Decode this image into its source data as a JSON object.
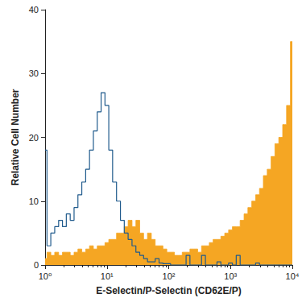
{
  "chart_data": {
    "type": "line",
    "x_label": "E-Selectin/P-Selectin (CD62E/P)",
    "y_label": "Relative Cell Number",
    "log": "x",
    "grid": false,
    "xlim": [
      1,
      10000
    ],
    "xticks": [
      {
        "value": 1,
        "label": "10⁰"
      },
      {
        "value": 10,
        "label": "10¹"
      },
      {
        "value": 100,
        "label": "10²"
      },
      {
        "value": 1000,
        "label": "10³"
      },
      {
        "value": 10000,
        "label": "10⁴"
      }
    ],
    "ylim": [
      0,
      40
    ],
    "yticks": [
      0,
      10,
      20,
      30,
      40
    ],
    "x": [
      1,
      1.15,
      1.33,
      1.54,
      1.78,
      2.05,
      2.37,
      2.74,
      3.16,
      3.65,
      4.22,
      4.87,
      5.62,
      6.49,
      7.5,
      8.66,
      10,
      11.5,
      13.3,
      15.4,
      17.8,
      20.5,
      23.7,
      27.4,
      31.6,
      36.5,
      42.2,
      48.7,
      56.2,
      64.9,
      75,
      86.6,
      100,
      115,
      133,
      154,
      178,
      205,
      237,
      274,
      316,
      365,
      422,
      487,
      562,
      649,
      750,
      866,
      1000,
      1150,
      1330,
      1540,
      1780,
      2050,
      2370,
      2740,
      3160,
      3650,
      4220,
      4870,
      5620,
      6490,
      7500,
      8660,
      10000
    ],
    "series": [
      {
        "type": "area",
        "color": "#f5a623",
        "line_style": "step",
        "values": [
          1,
          2,
          1.5,
          2,
          1.5,
          2,
          2,
          1.5,
          2,
          2.5,
          2,
          2.5,
          3,
          2.5,
          3,
          3,
          3.5,
          4,
          4,
          5,
          5,
          6,
          7,
          6,
          7,
          5,
          4,
          5,
          4,
          3,
          3,
          2.5,
          2,
          2,
          1.5,
          1.5,
          2,
          2,
          2.5,
          2.5,
          2,
          3,
          3,
          3.5,
          4,
          4,
          4.5,
          5,
          5.5,
          6,
          6,
          7,
          8,
          9,
          10,
          11,
          12,
          14,
          15,
          17,
          19,
          20,
          22,
          25,
          35
        ]
      },
      {
        "type": "line",
        "color": "#1f5a8c",
        "line_style": "step",
        "values": [
          18,
          3,
          5,
          6,
          7,
          6,
          8,
          7,
          9,
          11,
          13,
          15,
          18,
          21,
          24,
          27,
          25,
          18,
          13,
          10,
          7,
          5,
          4,
          3,
          2,
          1.5,
          1,
          0.5,
          0.5,
          1,
          0.3,
          0.2,
          0.2,
          0,
          0,
          0,
          0,
          1.5,
          0,
          0,
          0,
          1.5,
          0,
          0,
          0,
          0.5,
          0,
          0,
          0.3,
          0,
          1.5,
          0,
          0,
          0,
          0,
          0.3,
          0,
          0,
          0,
          0,
          0,
          0,
          0,
          0,
          0
        ]
      }
    ]
  }
}
